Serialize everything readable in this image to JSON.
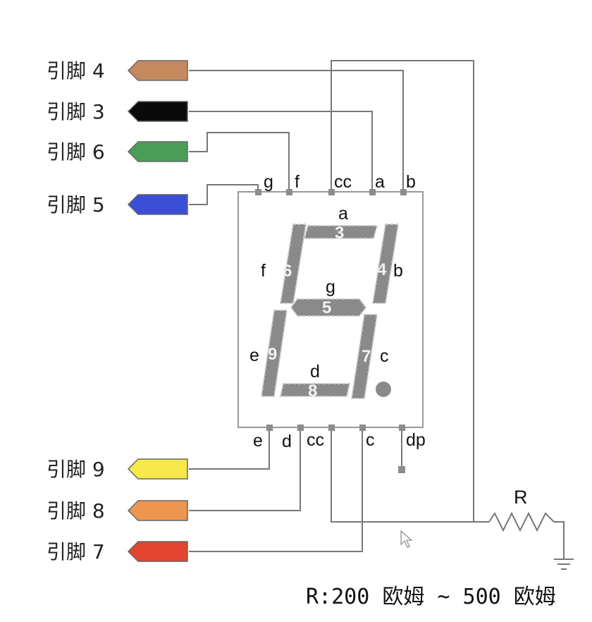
{
  "connectors": [
    {
      "id": "pin4",
      "label": "引脚 4",
      "color": "#c48a5e"
    },
    {
      "id": "pin3",
      "label": "引脚 3",
      "color": "#0a0a0a"
    },
    {
      "id": "pin6",
      "label": "引脚 6",
      "color": "#4a9e57"
    },
    {
      "id": "pin5",
      "label": "引脚 5",
      "color": "#3a4fd6"
    },
    {
      "id": "pin9",
      "label": "引脚 9",
      "color": "#f6e84a"
    },
    {
      "id": "pin8",
      "label": "引脚 8",
      "color": "#ee9650"
    },
    {
      "id": "pin7",
      "label": "引脚 7",
      "color": "#e24630"
    }
  ],
  "top_terminals": [
    "g",
    "f",
    "cc",
    "a",
    "b"
  ],
  "bottom_terminals": [
    "e",
    "d",
    "cc",
    "c",
    "dp"
  ],
  "segments": {
    "a": {
      "letter": "a",
      "number": "3"
    },
    "b": {
      "letter": "b",
      "number": "4"
    },
    "c": {
      "letter": "c",
      "number": "7"
    },
    "d": {
      "letter": "d",
      "number": "8"
    },
    "e": {
      "letter": "e",
      "number": "9"
    },
    "f": {
      "letter": "f",
      "number": "6"
    },
    "g": {
      "letter": "g",
      "number": "5"
    }
  },
  "resistor": {
    "label": "R"
  },
  "note": "R:200 欧姆 ~ 500 欧姆"
}
